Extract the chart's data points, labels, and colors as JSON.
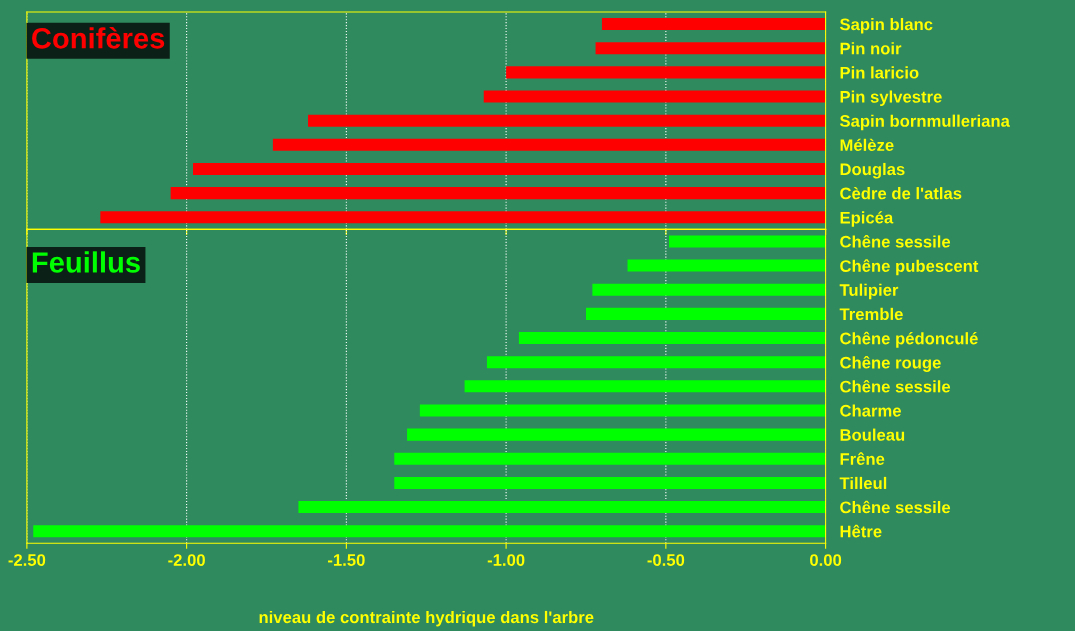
{
  "chart_data": [
    {
      "type": "bar",
      "orientation": "horizontal",
      "title": "Conifères",
      "categories": [
        "Sapin blanc",
        "Pin noir",
        "Pin laricio",
        "Pin sylvestre",
        "Sapin bornmulleriana",
        "Mélèze",
        "Douglas",
        "Cèdre de l'atlas",
        "Epicéa"
      ],
      "series": [
        {
          "color": "#ff0000",
          "values": [
            -0.7,
            -0.72,
            -1.0,
            -1.07,
            -1.62,
            -1.73,
            -1.98,
            -2.05,
            -2.27
          ]
        }
      ],
      "xlim": [
        -2.5,
        0
      ],
      "xticks": [
        {
          "value": -2.5,
          "label": null
        },
        {
          "value": -2.0,
          "label": null
        },
        {
          "value": -1.5,
          "label": null
        },
        {
          "value": -1.0,
          "label": null
        },
        {
          "value": -0.5,
          "label": null
        },
        {
          "value": 0,
          "label": null
        }
      ],
      "tick_labels": "y",
      "grid": "x"
    },
    {
      "type": "bar",
      "orientation": "horizontal",
      "title": "Feuillus",
      "xlabel": "niveau de contrainte hydrique dans l'arbre",
      "categories": [
        "Chêne sessile",
        "Chêne pubescent",
        "Tulipier",
        "Tremble",
        "Chêne pédonculé",
        "Chêne rouge",
        "Chêne sessile",
        "Charme",
        "Bouleau",
        "Frêne",
        "Tilleul",
        "Chêne sessile",
        "Hêtre"
      ],
      "series": [
        {
          "color": "#00ff00",
          "values": [
            -0.49,
            -0.62,
            -0.73,
            -0.75,
            -0.96,
            -1.06,
            -1.13,
            -1.27,
            -1.31,
            -1.35,
            -1.35,
            -1.65,
            -2.48
          ]
        }
      ],
      "xlim": [
        -2.5,
        0
      ],
      "xticks": [
        {
          "value": -2.5,
          "label": "-2.50"
        },
        {
          "value": -2.0,
          "label": "-2.00"
        },
        {
          "value": -1.5,
          "label": "-1.50"
        },
        {
          "value": -1.0,
          "label": "-1.00"
        },
        {
          "value": -0.5,
          "label": "-0.50"
        },
        {
          "value": 0,
          "label": "0.00"
        }
      ],
      "grid": "x"
    }
  ]
}
